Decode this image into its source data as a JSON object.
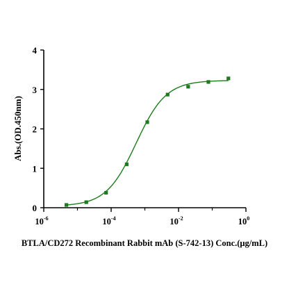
{
  "chart_data": {
    "type": "scatter",
    "title": "",
    "xlabel": "BTLA/CD272 Recombinant Rabbit mAb (S-742-13) Conc.(μg/mL)",
    "ylabel": "Abs.(OD.450nm)",
    "x_scale": "log",
    "xlim": [
      1e-06,
      1
    ],
    "ylim": [
      0,
      4
    ],
    "x_ticks": [
      {
        "base": "10",
        "exp": "-6",
        "value": 1e-06
      },
      {
        "base": "10",
        "exp": "-4",
        "value": 0.0001
      },
      {
        "base": "10",
        "exp": "-2",
        "value": 0.01
      },
      {
        "base": "10",
        "exp": "0",
        "value": 1
      }
    ],
    "y_ticks": [
      "0",
      "1",
      "2",
      "3",
      "4"
    ],
    "grid": false,
    "colors": {
      "series": "#1e7a1e",
      "axis": "#000000"
    },
    "series": [
      {
        "points": [
          {
            "x": 4.7e-06,
            "y": 0.07
          },
          {
            "x": 1.83e-05,
            "y": 0.14
          },
          {
            "x": 7.07e-05,
            "y": 0.38
          },
          {
            "x": 0.000289,
            "y": 1.1
          },
          {
            "x": 0.00118,
            "y": 2.17
          },
          {
            "x": 0.00474,
            "y": 2.87
          },
          {
            "x": 0.0193,
            "y": 3.07
          },
          {
            "x": 0.0768,
            "y": 3.19
          },
          {
            "x": 0.302,
            "y": 3.28
          }
        ],
        "fit": {
          "model": "4PL",
          "bottom": 0.04,
          "top": 3.23,
          "ec50": 0.00055,
          "hill": 0.98
        }
      }
    ]
  }
}
